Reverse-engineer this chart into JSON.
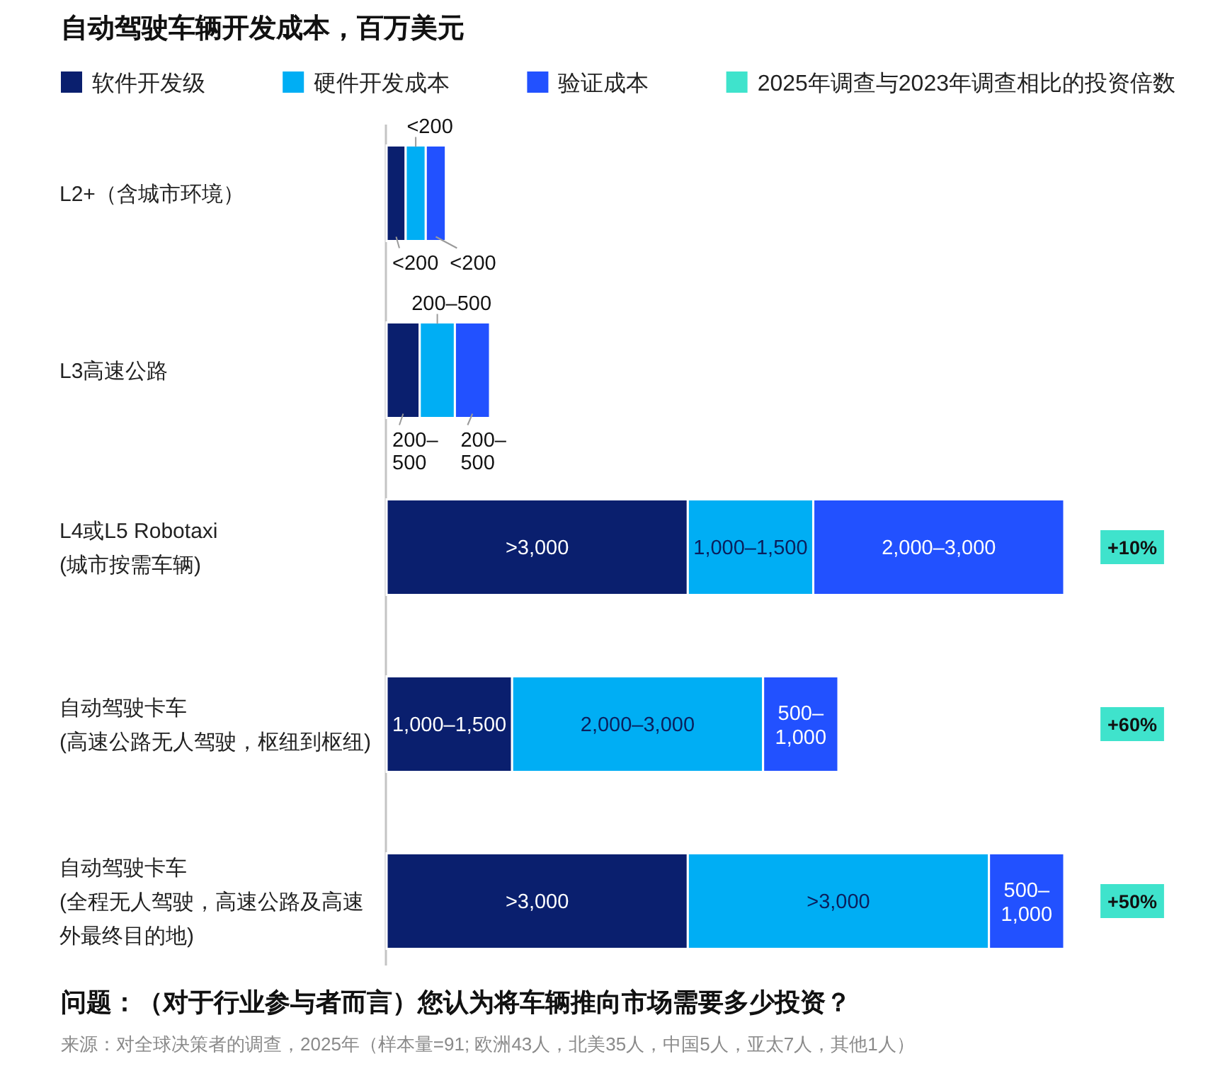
{
  "chart_data": {
    "type": "bar",
    "orientation": "horizontal",
    "stacked": true,
    "title": "自动驾驶车辆开发成本，百万美元",
    "categories": [
      "L2+（含城市环境）",
      "L3高速公路",
      "L4或L5 Robotaxi\n(城市按需车辆)",
      "自动驾驶卡车\n(高速公路无人驾驶，枢纽到枢纽)",
      "自动驾驶卡车\n(全程无人驾驶，高速公路及高速外最终目的地)"
    ],
    "series": [
      {
        "name": "软件开发级",
        "color": "#0a1f6e",
        "values": [
          190,
          330,
          3000,
          1250,
          3000
        ],
        "value_labels": [
          "<200",
          "200–500",
          ">3,000",
          "1,000–1,500",
          ">3,000"
        ]
      },
      {
        "name": "硬件开发成本",
        "color": "#00aef4",
        "values": [
          200,
          350,
          1250,
          2500,
          3000
        ],
        "value_labels": [
          "<200",
          "200–500",
          "1,000–1,500",
          "2,000–3,000",
          ">3,000"
        ]
      },
      {
        "name": "验证成本",
        "color": "#2251ff",
        "values": [
          200,
          350,
          2500,
          750,
          750
        ],
        "value_labels": [
          "<200",
          "200–500",
          "2,000–3,000",
          "500–1,000",
          "500–1,000"
        ]
      },
      {
        "name": "2025年调查与2023年调查相比的投资倍数",
        "color": "#3fe3cc",
        "values": [
          null,
          null,
          null,
          null,
          null
        ],
        "value_labels": [
          null,
          null,
          "+10%",
          "+60%",
          "+50%"
        ]
      }
    ],
    "legend": "top",
    "annotations": [
      "问题：（对于行业参与者而言）您认为将车辆推向市场需要多少投资？",
      "来源：对全球决策者的调查，2025年（样本量=91; 欧洲43人，北美35人，中国5人，亚太7人，其他1人）"
    ]
  }
}
